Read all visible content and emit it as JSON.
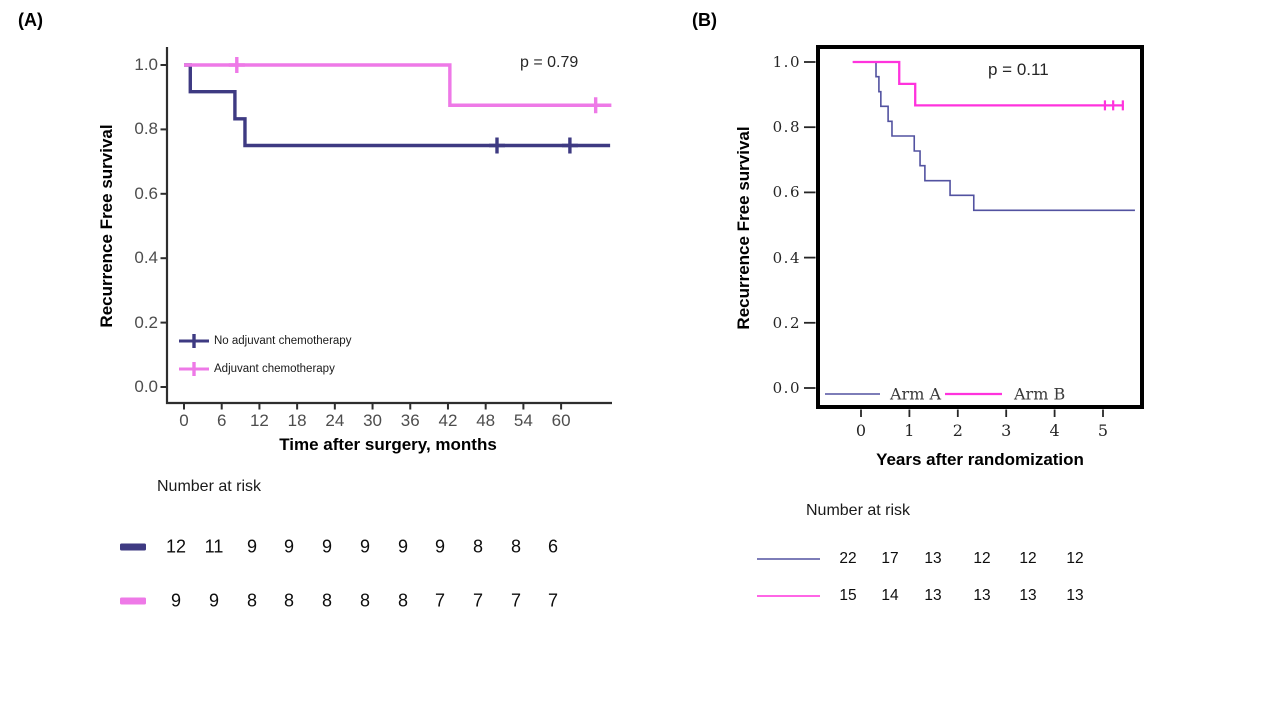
{
  "figure": {
    "background": "#ffffff"
  },
  "chart_data": [
    {
      "type": "line",
      "kind": "kaplan-meier-step",
      "panel_label": "(A)",
      "p_value": "p = 0.79",
      "x_axis": {
        "title": "Time after surgery, months",
        "ticks": [
          0,
          6,
          12,
          18,
          24,
          30,
          36,
          42,
          48,
          54,
          60
        ],
        "tick_labels": [
          "0",
          "6",
          "12",
          "18",
          "24",
          "30",
          "36",
          "42",
          "48",
          "54",
          "60"
        ],
        "range": [
          0,
          68
        ]
      },
      "y_axis": {
        "title": "Recurrence Free survival",
        "tick_values": [
          1.0,
          0.8,
          0.6,
          0.4,
          0.2,
          0.0
        ],
        "tick_labels": [
          "1.0",
          "0.8",
          "0.6",
          "0.4",
          "0.2",
          "0.0"
        ],
        "range": [
          0,
          1
        ]
      },
      "legend_position": "inside-lower-left",
      "grid": false,
      "series": [
        {
          "name": "No adjuvant chemotherapy",
          "color": "#3e3a82",
          "start_t": 0,
          "drops": [
            [
              1.0,
              0.917
            ],
            [
              8.1,
              0.833
            ],
            [
              9.7,
              0.75
            ]
          ],
          "end_t": 67.8,
          "censors": [
            [
              49.8,
              0.75
            ],
            [
              61.4,
              0.75
            ]
          ]
        },
        {
          "name": "Adjuvant chemotherapy",
          "color": "#ee79e7",
          "start_t": 0,
          "drops": [
            [
              42.3,
              0.875
            ]
          ],
          "end_t": 68.0,
          "censors": [
            [
              8.4,
              1.0
            ],
            [
              65.5,
              0.875
            ]
          ]
        }
      ],
      "number_at_risk": {
        "header": "Number at risk",
        "times": [
          0,
          6,
          12,
          18,
          24,
          30,
          36,
          42,
          48,
          54,
          60
        ],
        "rows": [
          {
            "series": "No adjuvant chemotherapy",
            "color": "#3e3a82",
            "values": [
              "12",
              "11",
              "9",
              "9",
              "9",
              "9",
              "9",
              "9",
              "8",
              "8",
              "6"
            ]
          },
          {
            "series": "Adjuvant chemotherapy",
            "color": "#ee79e7",
            "values": [
              "9",
              "9",
              "8",
              "8",
              "8",
              "8",
              "8",
              "7",
              "7",
              "7",
              "7"
            ]
          }
        ]
      }
    },
    {
      "type": "line",
      "kind": "kaplan-meier-step",
      "panel_label": "(B)",
      "p_value": "p = 0.11",
      "x_axis": {
        "title": "Years after randomization",
        "ticks": [
          0,
          1,
          2,
          3,
          4,
          5
        ],
        "tick_labels": [
          "0",
          "1",
          "2",
          "3",
          "4",
          "5"
        ],
        "range": [
          -0.2,
          5.8
        ]
      },
      "y_axis": {
        "title": "Recurrence Free survival",
        "tick_values": [
          1.0,
          0.8,
          0.6,
          0.4,
          0.2,
          0.0
        ],
        "tick_labels": [
          "1.0",
          "0.8",
          "0.6",
          "0.4",
          "0.2",
          "0.0"
        ],
        "range": [
          0,
          1
        ]
      },
      "legend_position": "inside-bottom",
      "grid": false,
      "framed_box": true,
      "series": [
        {
          "name": "Arm A",
          "color": "#5252a0",
          "start_t": -0.17,
          "drops": [
            [
              0.31,
              0.955
            ],
            [
              0.37,
              0.909
            ],
            [
              0.41,
              0.864
            ],
            [
              0.56,
              0.818
            ],
            [
              0.64,
              0.773
            ],
            [
              1.1,
              0.727
            ],
            [
              1.22,
              0.682
            ],
            [
              1.32,
              0.636
            ],
            [
              1.84,
              0.591
            ],
            [
              2.33,
              0.545
            ]
          ],
          "end_t": 5.66,
          "censors": []
        },
        {
          "name": "Arm B",
          "color": "#ff33dd",
          "start_t": -0.17,
          "drops": [
            [
              0.79,
              0.933
            ],
            [
              1.12,
              0.867
            ]
          ],
          "end_t": 5.41,
          "censors": [
            [
              5.04,
              0.867
            ],
            [
              5.21,
              0.867
            ],
            [
              5.41,
              0.867
            ]
          ]
        }
      ],
      "number_at_risk": {
        "header": "Number at risk",
        "times": [
          0,
          1,
          2,
          3,
          4,
          5
        ],
        "rows": [
          {
            "series": "Arm A",
            "color": "#5252a0",
            "values": [
              "22",
              "17",
              "13",
              "12",
              "12",
              "12"
            ]
          },
          {
            "series": "Arm B",
            "color": "#ff33dd",
            "values": [
              "15",
              "14",
              "13",
              "13",
              "13",
              "13"
            ]
          }
        ]
      }
    }
  ]
}
